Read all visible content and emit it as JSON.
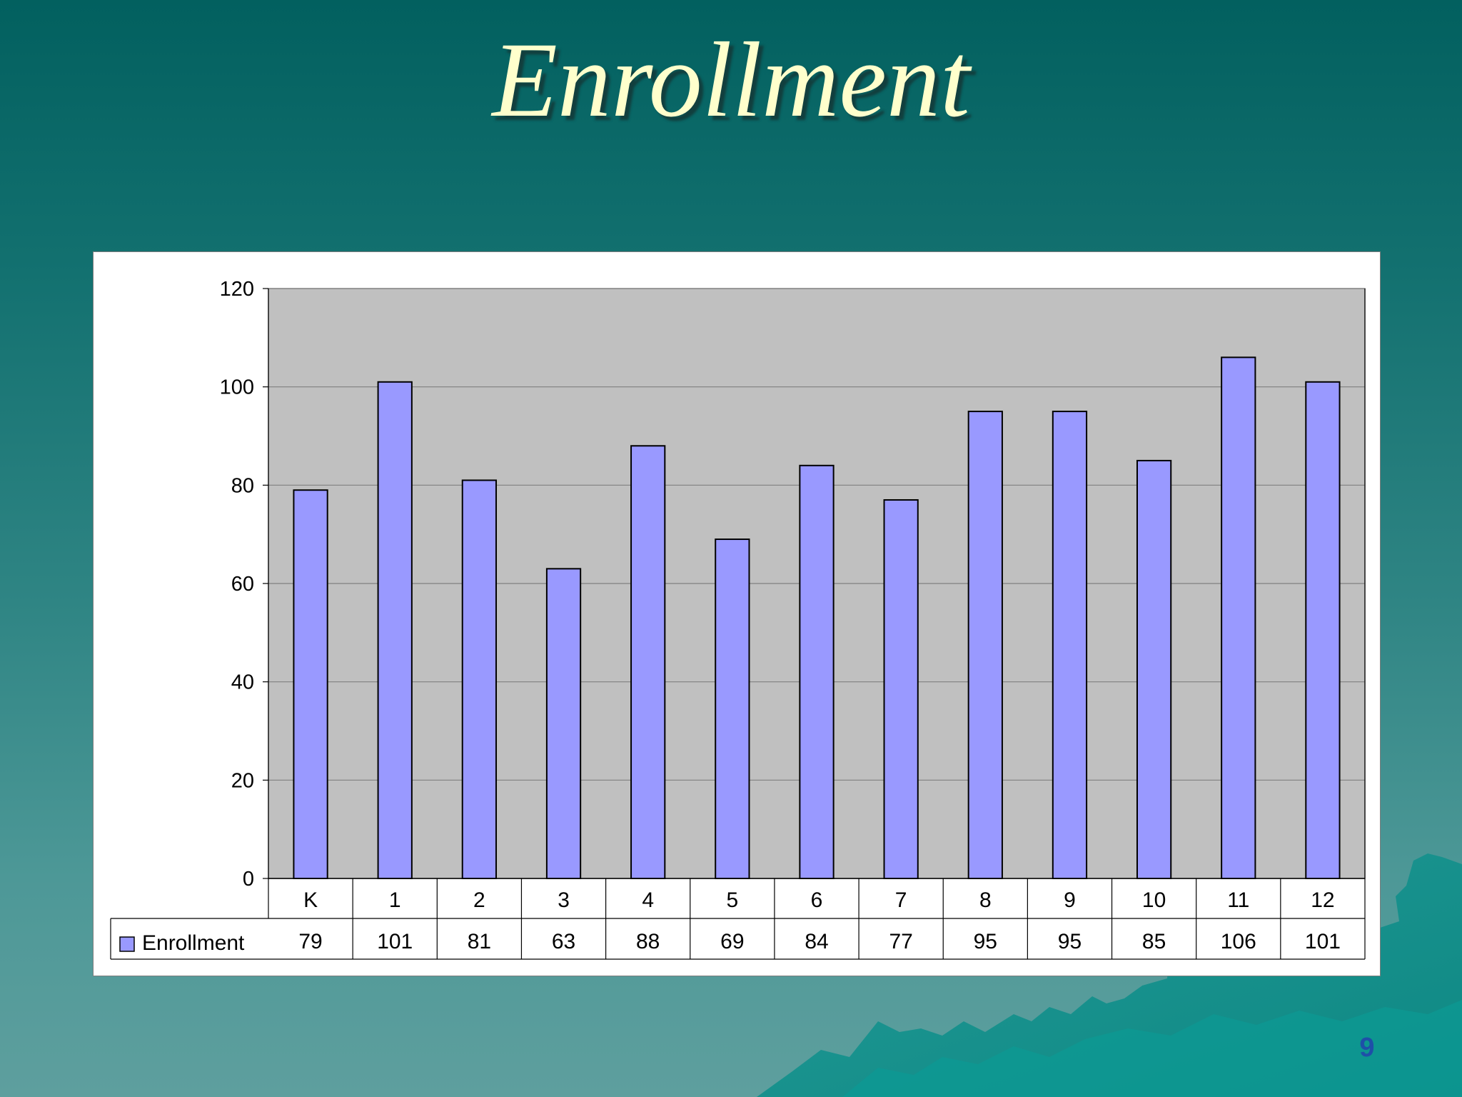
{
  "slide": {
    "title": "Enrollment",
    "page_number": "9"
  },
  "colors": {
    "bar_fill": "#9999ff",
    "plot_background": "#c0c0c0",
    "title": "#ffffcc"
  },
  "chart_data": {
    "type": "bar",
    "title": "",
    "xlabel": "",
    "ylabel": "",
    "categories": [
      "K",
      "1",
      "2",
      "3",
      "4",
      "5",
      "6",
      "7",
      "8",
      "9",
      "10",
      "11",
      "12"
    ],
    "series": [
      {
        "name": "Enrollment",
        "values": [
          79,
          101,
          81,
          63,
          88,
          69,
          84,
          77,
          95,
          95,
          85,
          106,
          101
        ]
      }
    ],
    "ylim": [
      0,
      120
    ],
    "yticks": [
      0,
      20,
      40,
      60,
      80,
      100,
      120
    ],
    "grid": true,
    "legend": "data-table-left",
    "data_table": true
  }
}
